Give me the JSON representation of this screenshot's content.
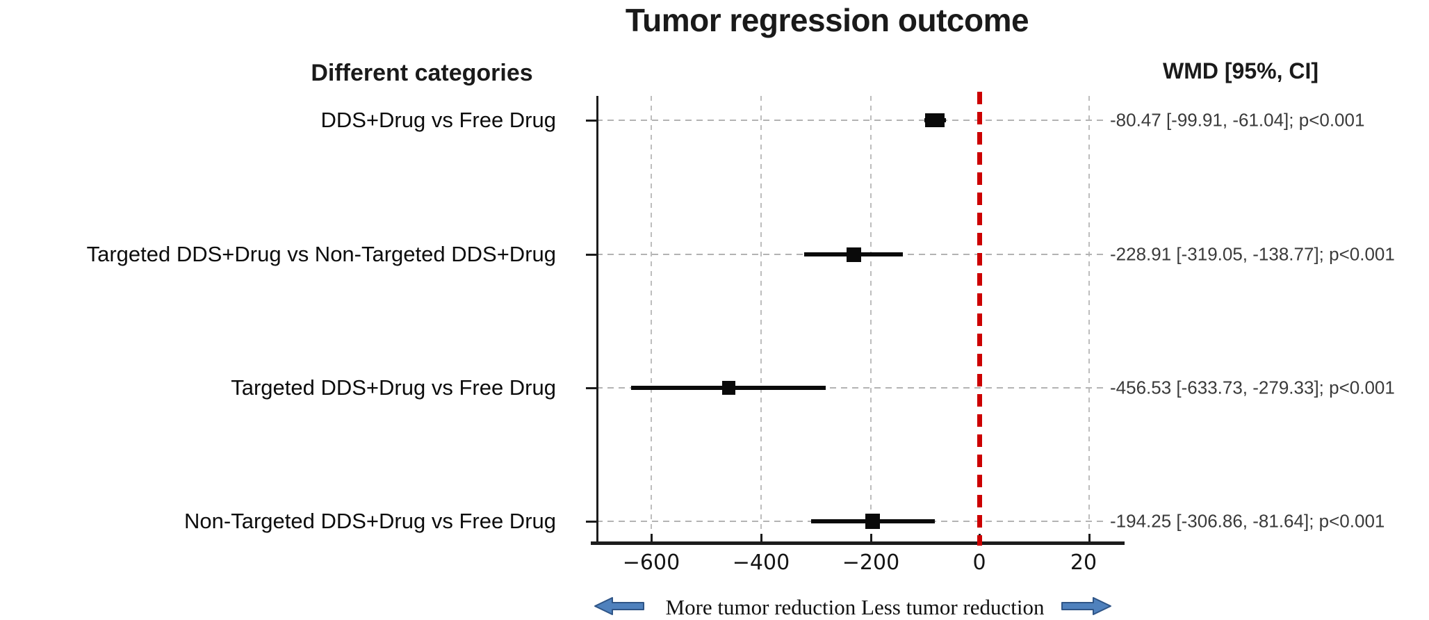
{
  "title": "Tumor regression outcome",
  "columns": {
    "left_header": "Different categories",
    "right_header": "WMD [95%, CI]"
  },
  "rows": [
    {
      "label": "DDS+Drug vs Free Drug",
      "value": "-80.47 [-99.91, -61.04]; p<0.001"
    },
    {
      "label": "Targeted DDS+Drug vs Non-Targeted DDS+Drug",
      "value": "-228.91 [-319.05, -138.77]; p<0.001"
    },
    {
      "label": "Targeted DDS+Drug vs Free Drug",
      "value": "-456.53 [-633.73, -279.33]; p<0.001"
    },
    {
      "label": "Non-Targeted DDS+Drug vs Free Drug",
      "value": "-194.25 [-306.86, -81.64]; p<0.001"
    }
  ],
  "axis": {
    "ticks": [
      "−600",
      "−400",
      "−200",
      "0",
      "20"
    ]
  },
  "footer": {
    "label": "More tumor reduction Less tumor reduction",
    "left_arrow_icon": "left-arrow-icon",
    "right_arrow_icon": "right-arrow-icon"
  },
  "colors": {
    "reference_line": "#cc0000",
    "marker": "#0a0a0a",
    "gridline": "#b3b3b3",
    "arrow_fill": "#4f81bd",
    "arrow_stroke": "#2f5587",
    "value_text": "#3a3a3a"
  },
  "chart_data": {
    "type": "forest",
    "title": "Tumor regression outcome",
    "categories": [
      "DDS+Drug vs Free Drug",
      "Targeted DDS+Drug vs Non-Targeted DDS+Drug",
      "Targeted DDS+Drug vs Free Drug",
      "Non-Targeted DDS+Drug vs Free Drug"
    ],
    "series": [
      {
        "name": "WMD",
        "values": [
          -80.47,
          -228.91,
          -456.53,
          -194.25
        ]
      }
    ],
    "ci_low": [
      -99.91,
      -319.05,
      -633.73,
      -306.86
    ],
    "ci_high": [
      -61.04,
      -138.77,
      -279.33,
      -81.64
    ],
    "p_values": [
      "p<0.001",
      "p<0.001",
      "p<0.001",
      "p<0.001"
    ],
    "value_labels": [
      "-80.47 [-99.91, -61.04]; p<0.001",
      "-228.91 [-319.05, -138.77]; p<0.001",
      "-456.53 [-633.73, -279.33]; p<0.001",
      "-194.25 [-306.86, -81.64]; p<0.001"
    ],
    "xticks": [
      -600,
      -400,
      -200,
      0,
      20
    ],
    "reference_line": 0,
    "grid": true,
    "legend": null,
    "xlabel_note": "More tumor reduction Less tumor reduction",
    "marker_sizes": [
      [
        28,
        20
      ],
      [
        21,
        21
      ],
      [
        19,
        20
      ],
      [
        21,
        22
      ]
    ]
  }
}
